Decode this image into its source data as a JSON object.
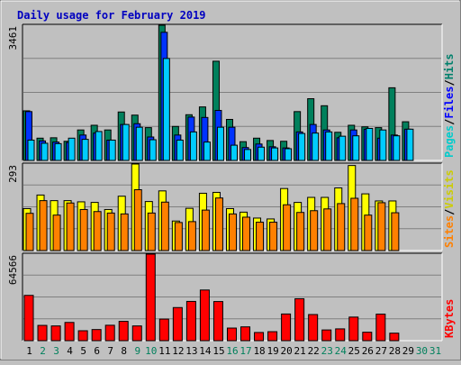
{
  "chart_data": {
    "type": "bar",
    "title": "Daily usage for February 2019",
    "x": [
      1,
      2,
      3,
      4,
      5,
      6,
      7,
      8,
      9,
      10,
      11,
      12,
      13,
      14,
      15,
      16,
      17,
      18,
      19,
      20,
      21,
      22,
      23,
      24,
      25,
      26,
      27,
      28,
      29,
      30,
      31
    ],
    "weekend_days": [
      2,
      3,
      9,
      10,
      16,
      17,
      23,
      24,
      30,
      31
    ],
    "panels": [
      {
        "id": "top",
        "ymax": 3461,
        "ymax_label": "3461",
        "series": [
          {
            "name": "Hits",
            "color": "#00805c",
            "values": [
              1270,
              570,
              580,
              490,
              780,
              900,
              780,
              1240,
              1160,
              840,
              3461,
              870,
              1170,
              1370,
              2540,
              1050,
              480,
              570,
              510,
              490,
              1250,
              1580,
              1400,
              720,
              900,
              860,
              840,
              1860,
              990,
              0,
              0
            ]
          },
          {
            "name": "Files",
            "color": "#0033ff",
            "values": [
              1250,
              500,
              470,
              460,
              650,
              700,
              520,
              920,
              940,
              600,
              3280,
              650,
              1110,
              1100,
              1280,
              850,
              330,
              420,
              350,
              320,
              730,
              920,
              780,
              580,
              780,
              800,
              570,
              650,
              800,
              0,
              0
            ]
          },
          {
            "name": "Pages",
            "color": "#00ccff",
            "values": [
              520,
              440,
              430,
              570,
              540,
              740,
              520,
              920,
              850,
              530,
              2610,
              520,
              730,
              470,
              850,
              390,
              280,
              340,
              320,
              300,
              690,
              700,
              730,
              620,
              630,
              820,
              780,
              630,
              800,
              0,
              0
            ]
          }
        ],
        "legend": [
          {
            "label": "Pages",
            "color": "#00cccc"
          },
          {
            "label": "/",
            "color": "#000000"
          },
          {
            "label": "Files",
            "color": "#0000ff"
          },
          {
            "label": "/",
            "color": "#000000"
          },
          {
            "label": "Hits",
            "color": "#00806c"
          }
        ]
      },
      {
        "id": "middle",
        "ymax": 293,
        "ymax_label": "293",
        "series": [
          {
            "name": "Visits",
            "color": "#ffff00",
            "values": [
              142,
              188,
              169,
              169,
              165,
              163,
              139,
              184,
              293,
              166,
              202,
              100,
              143,
              194,
              197,
              142,
              130,
              110,
              107,
              210,
              163,
              180,
              180,
              212,
              288,
              192,
              168,
              168,
              0,
              0,
              0
            ]
          },
          {
            "name": "Sites",
            "color": "#ff8000",
            "values": [
              126,
              169,
              120,
              161,
              139,
              132,
              127,
              124,
              206,
              127,
              164,
              95,
              98,
              137,
              178,
              124,
              113,
              96,
              96,
              155,
              129,
              135,
              141,
              159,
              177,
              120,
              162,
              128,
              0,
              0,
              0
            ]
          }
        ],
        "legend": [
          {
            "label": "Sites",
            "color": "#ff8000"
          },
          {
            "label": "/",
            "color": "#000000"
          },
          {
            "label": "Visits",
            "color": "#cccc00"
          }
        ]
      },
      {
        "id": "bottom",
        "ymax": 64566,
        "ymax_label": "64566",
        "series": [
          {
            "name": "KBytes",
            "color": "#ff0000",
            "values": [
              33800,
              11400,
              11000,
              13600,
              7400,
              8300,
              11500,
              14400,
              11000,
              64566,
              16100,
              24700,
              29300,
              37800,
              29200,
              9400,
              10300,
              6100,
              6700,
              19900,
              31300,
              19500,
              8000,
              8800,
              17600,
              6300,
              19800,
              5600,
              0,
              0,
              0
            ]
          }
        ],
        "legend": [
          {
            "label": "KBytes",
            "color": "#ff0000"
          }
        ]
      }
    ]
  }
}
